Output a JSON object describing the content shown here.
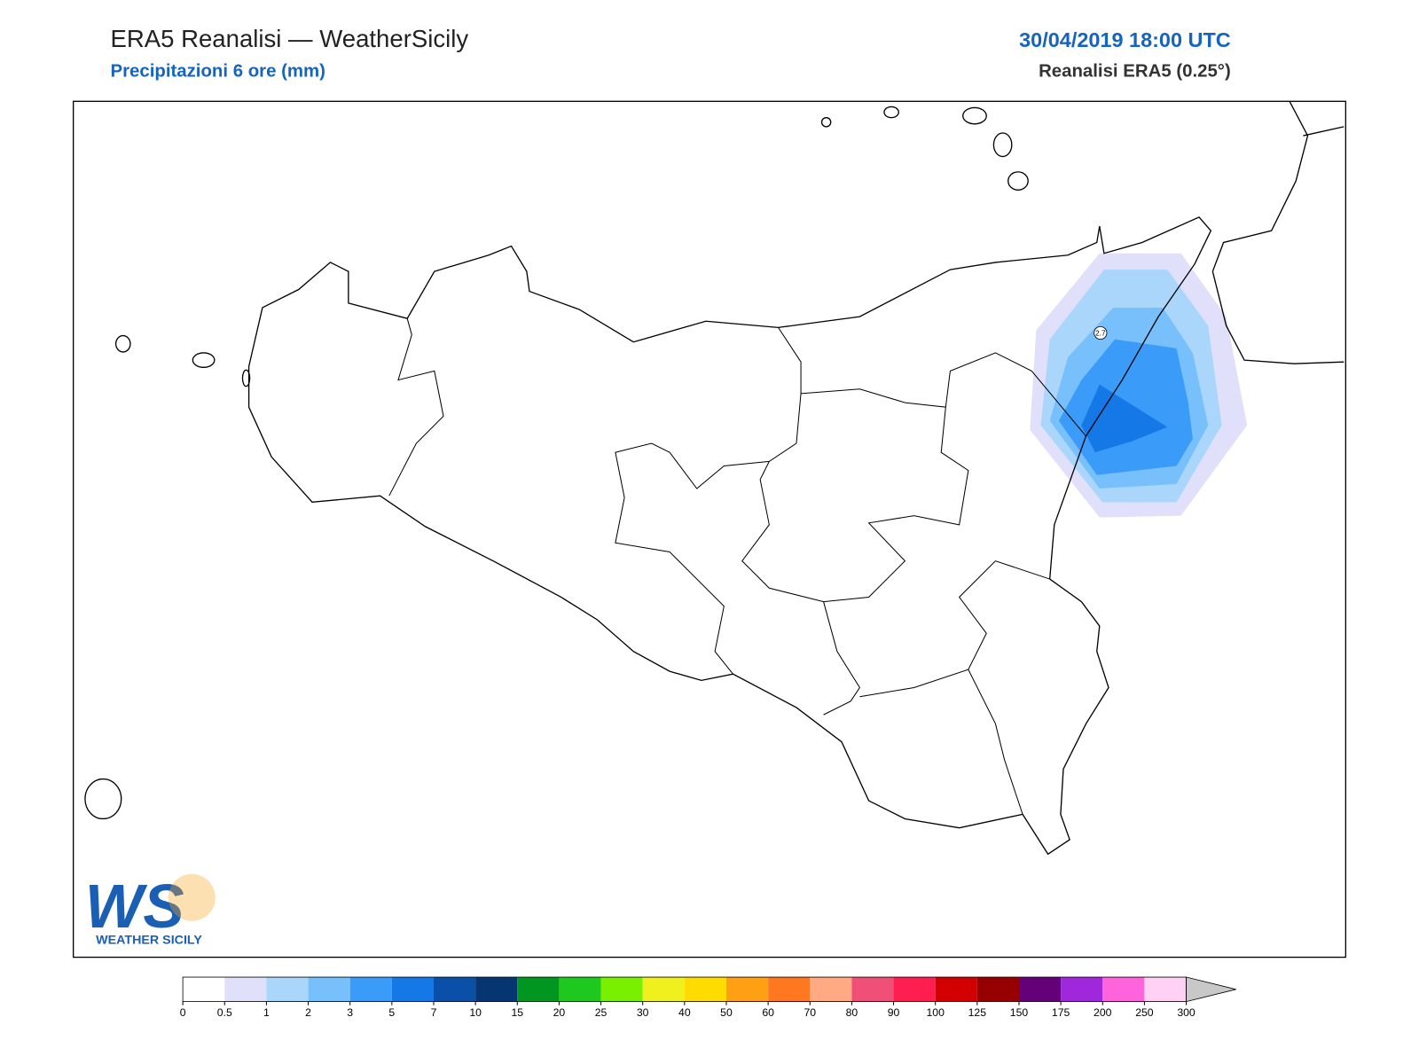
{
  "header": {
    "title": "ERA5 Reanalisi — WeatherSicily",
    "subtitle": "Precipitazioni 6 ore (mm)",
    "datetime": "30/04/2019 18:00 UTC",
    "source": "Reanalisi ERA5 (0.25°)"
  },
  "map": {
    "max_label": "2.7"
  },
  "logo": {
    "letters": "WS",
    "name": "WEATHER SICILY"
  },
  "colorbar": {
    "levels": [
      0,
      0.5,
      1,
      2,
      3,
      5,
      7,
      10,
      15,
      20,
      25,
      30,
      40,
      50,
      60,
      70,
      80,
      90,
      100,
      125,
      150,
      175,
      200,
      250,
      300
    ],
    "colors": [
      "#ffffff",
      "#e0e0fa",
      "#aad6fb",
      "#78c0fb",
      "#3a9cf8",
      "#1478e6",
      "#0a50a8",
      "#063672",
      "#009620",
      "#1ec81e",
      "#78f000",
      "#f0f01e",
      "#ffdc00",
      "#ffa014",
      "#ff7820",
      "#ffaa82",
      "#f05078",
      "#ff1e50",
      "#d20000",
      "#960000",
      "#640078",
      "#a028dc",
      "#ff64dc",
      "#ffd2f5"
    ],
    "extend_color": "#c8c8c8"
  }
}
